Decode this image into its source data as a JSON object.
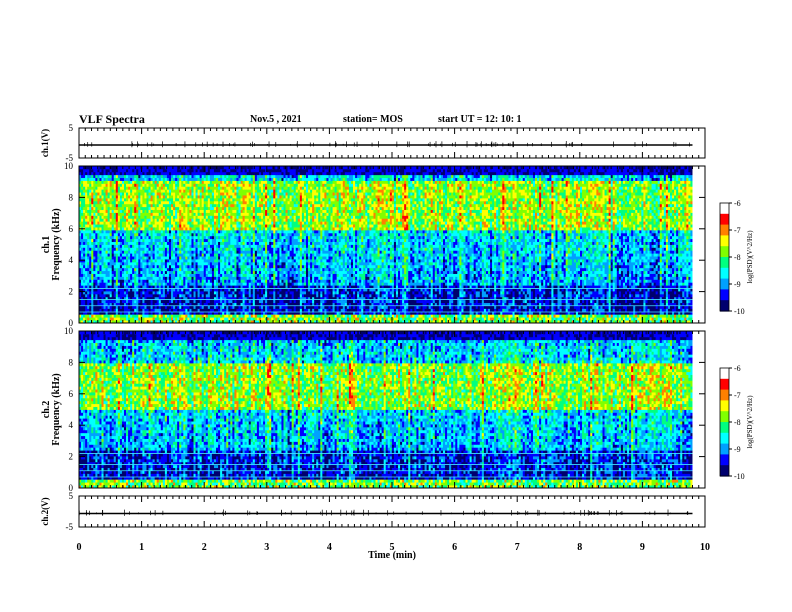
{
  "header": {
    "title": "VLF Spectra",
    "date": "Nov.5 , 2021",
    "station": "station= MOS",
    "start_ut": "start UT = 12: 10: 1"
  },
  "colors": {
    "ramp": [
      "#00006e",
      "#0000ff",
      "#00a0ff",
      "#00ffff",
      "#00ff80",
      "#80ff00",
      "#ffff00",
      "#ff8000",
      "#ff0000",
      "#ffffff"
    ]
  },
  "chart_data": [
    {
      "type": "line",
      "name": "waveform ch.1",
      "ylabel": "ch.1(V)",
      "ylim": [
        -5,
        5
      ],
      "y_ticks": [
        "5",
        "-5"
      ],
      "baseline_value": 0
    },
    {
      "type": "heatmap",
      "name": "spectrogram ch.1",
      "ylabel_top": "ch.1",
      "ylabel": "Frequency (kHz)",
      "ylim": [
        0,
        10
      ],
      "y_ticks": [
        "0",
        "2",
        "4",
        "6",
        "8",
        "10"
      ],
      "colorbar": {
        "label": "log(PSD)(V^2/Hz)",
        "range": [
          -10,
          -6
        ],
        "ticks": [
          "-6",
          "-7",
          "-8",
          "-9",
          "-10"
        ]
      },
      "intense_band_khz": [
        6,
        9
      ]
    },
    {
      "type": "heatmap",
      "name": "spectrogram ch.2",
      "ylabel_top": "ch.2",
      "ylabel": "Frequency (kHz)",
      "ylim": [
        0,
        10
      ],
      "y_ticks": [
        "0",
        "2",
        "4",
        "6",
        "8",
        "10"
      ],
      "colorbar": {
        "label": "log(PSD)(V^2/Hz)",
        "range": [
          -10,
          -6
        ],
        "ticks": [
          "-6",
          "-7",
          "-8",
          "-9",
          "-10"
        ]
      },
      "intense_band_khz": [
        5,
        8
      ]
    },
    {
      "type": "line",
      "name": "waveform ch.2",
      "ylabel": "ch.2(V)",
      "ylim": [
        -5,
        5
      ],
      "y_ticks": [
        "5",
        "-5"
      ],
      "baseline_value": 0
    }
  ],
  "x_axis": {
    "label": "Time (min)",
    "range": [
      0,
      10
    ],
    "ticks": [
      "0",
      "1",
      "2",
      "3",
      "4",
      "5",
      "6",
      "7",
      "8",
      "9",
      "10"
    ],
    "data_end_min": 9.8
  }
}
